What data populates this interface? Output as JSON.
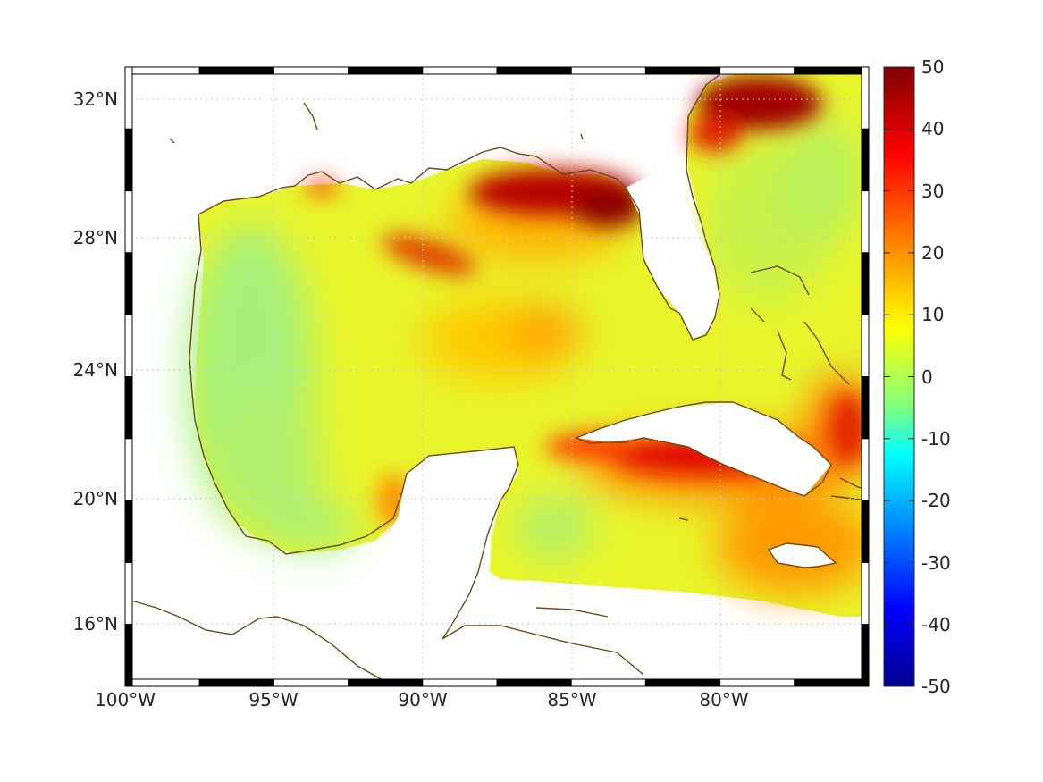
{
  "map": {
    "projection": "mercator",
    "lon_range": [
      -100,
      -75
    ],
    "lat_range": [
      14.2,
      32.9
    ],
    "grid": true,
    "frame": "black-white-striped",
    "lon_ticks": [
      "100°W",
      "95°W",
      "90°W",
      "85°W",
      "80°W"
    ],
    "lat_ticks": [
      "32°N",
      "28°N",
      "24°N",
      "20°N",
      "16°N"
    ],
    "coastline_color": "#6b4a14",
    "land_color": "#ffffff"
  },
  "colorbar": {
    "colormap": "jet",
    "range": [
      -50,
      50
    ],
    "tick_labels": [
      "50",
      "40",
      "30",
      "20",
      "10",
      "0",
      "-10",
      "-20",
      "-30",
      "-40",
      "-50"
    ],
    "colors": [
      "#00008f",
      "#0000ff",
      "#0080ff",
      "#00ffff",
      "#80ff80",
      "#ffff00",
      "#ff8000",
      "#ff0000",
      "#800000"
    ]
  },
  "field": {
    "description": "values over ocean, mostly 5–20; hotspots up to ~50",
    "regions": [
      {
        "name": "western gulf",
        "value": 5
      },
      {
        "name": "central gulf",
        "value": 15
      },
      {
        "name": "northeastern gulf (Apalachee Bay)",
        "value": 48
      },
      {
        "name": "Louisiana shelf streak",
        "value": 35
      },
      {
        "name": "Atlantic off Georgia",
        "value": 45
      },
      {
        "name": "south of Cuba",
        "value": 38
      },
      {
        "name": "Jamaica region",
        "value": 28
      },
      {
        "name": "Yucatan Channel",
        "value": 8
      }
    ]
  }
}
